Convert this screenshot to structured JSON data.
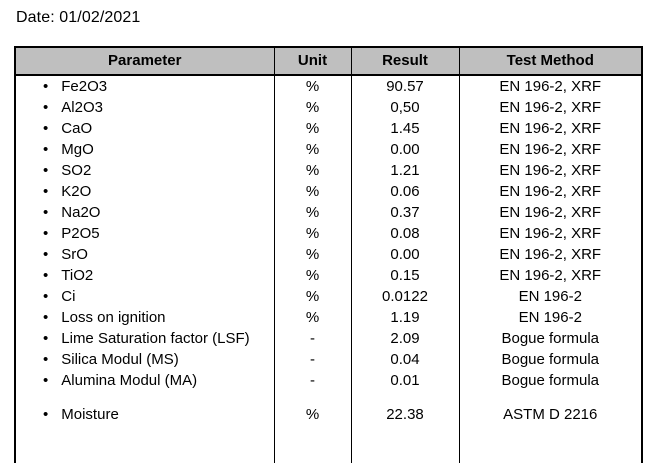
{
  "date_label": "Date: 01/02/2021",
  "colors": {
    "header_bg": "#BFBFBF",
    "border": "#000000",
    "text": "#000000"
  },
  "table": {
    "bullet": "•",
    "columns": [
      "Parameter",
      "Unit",
      "Result",
      "Test Method"
    ],
    "rows": [
      {
        "parameter": "Fe2O3",
        "unit": "%",
        "result": "90.57",
        "method": "EN 196-2, XRF"
      },
      {
        "parameter": "Al2O3",
        "unit": "%",
        "result": "0,50",
        "method": "EN 196-2, XRF"
      },
      {
        "parameter": "CaO",
        "unit": "%",
        "result": "1.45",
        "method": "EN 196-2, XRF"
      },
      {
        "parameter": "MgO",
        "unit": "%",
        "result": "0.00",
        "method": "EN 196-2, XRF"
      },
      {
        "parameter": "SO2",
        "unit": "%",
        "result": "1.21",
        "method": "EN 196-2, XRF"
      },
      {
        "parameter": "K2O",
        "unit": "%",
        "result": "0.06",
        "method": "EN 196-2, XRF"
      },
      {
        "parameter": "Na2O",
        "unit": "%",
        "result": "0.37",
        "method": "EN 196-2, XRF"
      },
      {
        "parameter": "P2O5",
        "unit": "%",
        "result": "0.08",
        "method": "EN 196-2, XRF"
      },
      {
        "parameter": "SrO",
        "unit": "%",
        "result": "0.00",
        "method": "EN 196-2, XRF"
      },
      {
        "parameter": "TiO2",
        "unit": "%",
        "result": "0.15",
        "method": "EN 196-2, XRF"
      },
      {
        "parameter": "Ci",
        "unit": "%",
        "result": "0.0122",
        "method": "EN 196-2"
      },
      {
        "parameter": "Loss on ignition",
        "unit": "%",
        "result": "1.19",
        "method": "EN 196-2"
      },
      {
        "parameter": "Lime Saturation factor (LSF)",
        "unit": "-",
        "result": "2.09",
        "method": "Bogue formula"
      },
      {
        "parameter": "Silica Modul (MS)",
        "unit": "-",
        "result": "0.04",
        "method": "Bogue formula"
      },
      {
        "parameter": "Alumina Modul (MA)",
        "unit": "-",
        "result": "0.01",
        "method": "Bogue formula"
      },
      {
        "parameter": "Moisture",
        "unit": "%",
        "result": "22.38",
        "method": "ASTM D 2216"
      }
    ]
  }
}
